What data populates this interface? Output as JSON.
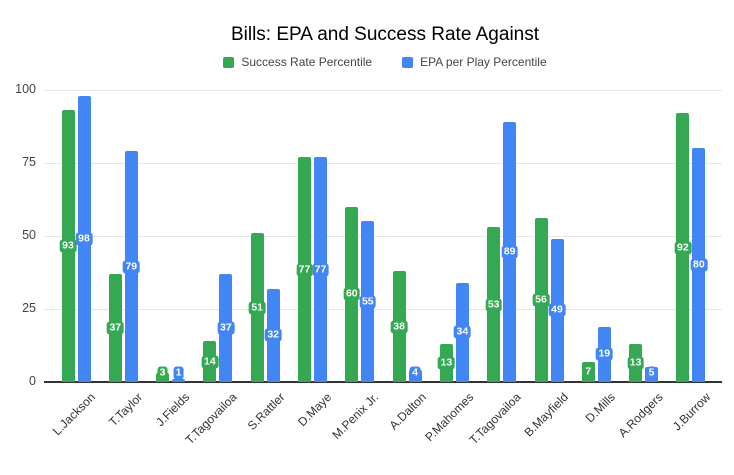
{
  "title": "Bills: EPA and Success Rate Against",
  "chart_data": {
    "type": "bar",
    "title": "Bills: EPA and Success Rate Against",
    "categories": [
      "L.Jackson",
      "T.Taylor",
      "J.Fields",
      "T.Tagovailoa",
      "S.Rattler",
      "D.Maye",
      "M.Penix Jr.",
      "A.Dalton",
      "P.Mahomes",
      "T.Tagovailoa",
      "B.Mayfield",
      "D.Mills",
      "A.Rodgers",
      "J.Burrow"
    ],
    "series": [
      {
        "name": "Success Rate Percentile",
        "color": "#34a853",
        "values": [
          93,
          37,
          3,
          14,
          51,
          77,
          60,
          38,
          13,
          53,
          56,
          7,
          13,
          92
        ]
      },
      {
        "name": "EPA per Play Percentile",
        "color": "#4285f4",
        "values": [
          98,
          79,
          1,
          37,
          32,
          77,
          55,
          4,
          34,
          89,
          49,
          19,
          5,
          80
        ]
      }
    ],
    "xlabel": "",
    "ylabel": "",
    "ylim": [
      0,
      100
    ],
    "yticks": [
      0,
      25,
      50,
      75,
      100
    ],
    "grid": true,
    "legend_position": "top",
    "data_labels": true
  },
  "colors": {
    "background": "#ffffff",
    "grid": "#e6e6e6",
    "axis": "#333333",
    "title_text": "#000000",
    "legend_text": "#444444",
    "tick_text": "#444444",
    "bar_label_text": "#ffffff",
    "series_green": "#34a853",
    "series_blue": "#4285f4"
  }
}
